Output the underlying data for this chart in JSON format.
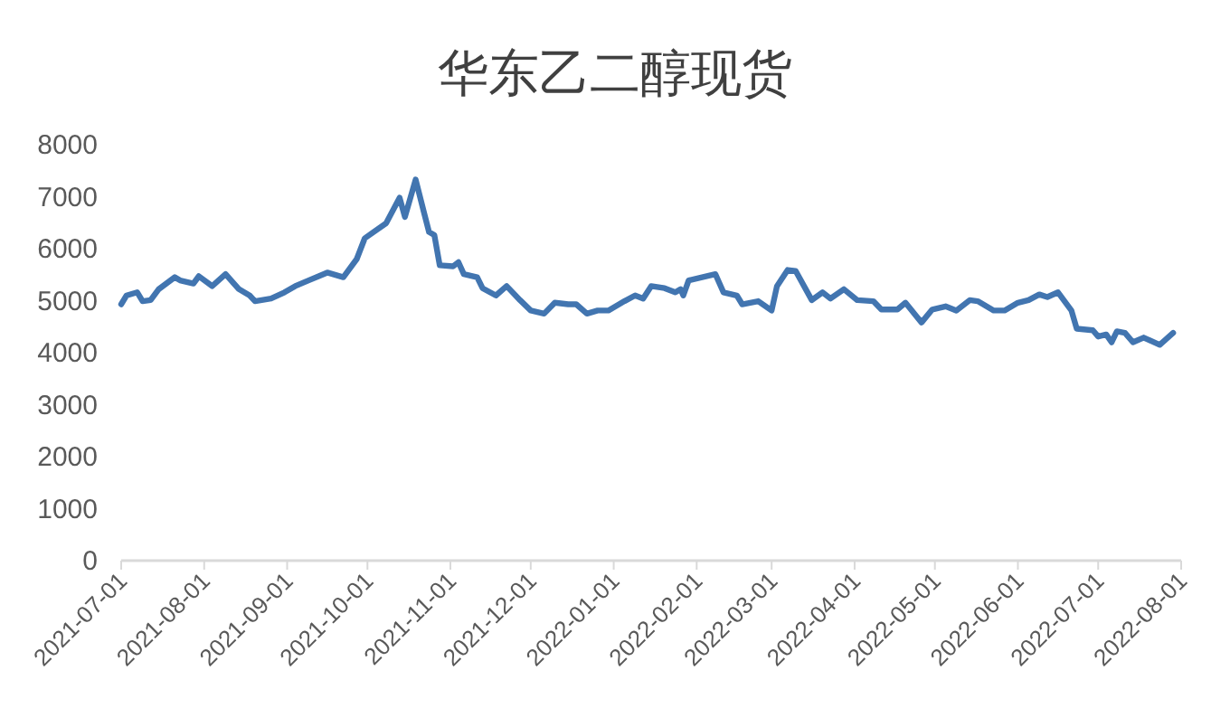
{
  "chart_data": {
    "type": "line",
    "title": "华东乙二醇现货",
    "x": [
      "2021-07-01",
      "2021-07-03",
      "2021-07-07",
      "2021-07-09",
      "2021-07-12",
      "2021-07-15",
      "2021-07-21",
      "2021-07-23",
      "2021-07-28",
      "2021-07-30",
      "2021-08-04",
      "2021-08-09",
      "2021-08-14",
      "2021-08-18",
      "2021-08-20",
      "2021-08-26",
      "2021-08-31",
      "2021-09-04",
      "2021-09-09",
      "2021-09-16",
      "2021-09-22",
      "2021-09-27",
      "2021-09-30",
      "2021-10-08",
      "2021-10-13",
      "2021-10-15",
      "2021-10-19",
      "2021-10-22",
      "2021-10-24",
      "2021-10-26",
      "2021-10-28",
      "2021-11-02",
      "2021-11-04",
      "2021-11-06",
      "2021-11-11",
      "2021-11-13",
      "2021-11-18",
      "2021-11-22",
      "2021-11-27",
      "2021-12-01",
      "2021-12-06",
      "2021-12-10",
      "2021-12-15",
      "2021-12-18",
      "2021-12-22",
      "2021-12-26",
      "2021-12-30",
      "2022-01-05",
      "2022-01-09",
      "2022-01-12",
      "2022-01-15",
      "2022-01-20",
      "2022-01-24",
      "2022-01-26",
      "2022-01-27",
      "2022-01-29",
      "2022-02-08",
      "2022-02-11",
      "2022-02-16",
      "2022-02-18",
      "2022-02-24",
      "2022-03-01",
      "2022-03-03",
      "2022-03-07",
      "2022-03-10",
      "2022-03-16",
      "2022-03-20",
      "2022-03-23",
      "2022-03-28",
      "2022-04-02",
      "2022-04-08",
      "2022-04-11",
      "2022-04-17",
      "2022-04-20",
      "2022-04-26",
      "2022-04-30",
      "2022-05-05",
      "2022-05-09",
      "2022-05-14",
      "2022-05-17",
      "2022-05-23",
      "2022-05-27",
      "2022-06-01",
      "2022-06-05",
      "2022-06-09",
      "2022-06-12",
      "2022-06-16",
      "2022-06-21",
      "2022-06-23",
      "2022-06-29",
      "2022-07-01",
      "2022-07-04",
      "2022-07-06",
      "2022-07-08",
      "2022-07-11",
      "2022-07-14",
      "2022-07-18",
      "2022-07-24",
      "2022-07-29"
    ],
    "series": [
      {
        "color": "#4275b0",
        "values": [
          4930,
          5100,
          5160,
          4990,
          5010,
          5220,
          5450,
          5390,
          5330,
          5470,
          5280,
          5510,
          5220,
          5100,
          4990,
          5040,
          5160,
          5280,
          5390,
          5540,
          5450,
          5800,
          6200,
          6490,
          6980,
          6610,
          7330,
          6720,
          6320,
          6260,
          5680,
          5660,
          5740,
          5510,
          5450,
          5240,
          5100,
          5280,
          5010,
          4810,
          4750,
          4960,
          4930,
          4930,
          4750,
          4810,
          4810,
          4990,
          5100,
          5040,
          5280,
          5240,
          5160,
          5220,
          5100,
          5390,
          5510,
          5160,
          5100,
          4930,
          4990,
          4810,
          5280,
          5590,
          5570,
          5010,
          5160,
          5040,
          5220,
          5010,
          4990,
          4830,
          4830,
          4960,
          4580,
          4830,
          4890,
          4810,
          5010,
          4990,
          4810,
          4810,
          4960,
          5010,
          5120,
          5070,
          5160,
          4810,
          4460,
          4430,
          4310,
          4350,
          4200,
          4410,
          4380,
          4200,
          4290,
          4150,
          4380
        ]
      }
    ],
    "xlim": [
      "2021-07-01",
      "2022-08-01"
    ],
    "xticks": [
      {
        "value": "2021-07-01",
        "label": "2021-07-01"
      },
      {
        "value": "2021-08-01",
        "label": "2021-08-01"
      },
      {
        "value": "2021-09-01",
        "label": "2021-09-01"
      },
      {
        "value": "2021-10-01",
        "label": "2021-10-01"
      },
      {
        "value": "2021-11-01",
        "label": "2021-11-01"
      },
      {
        "value": "2021-12-01",
        "label": "2021-12-01"
      },
      {
        "value": "2022-01-01",
        "label": "2022-01-01"
      },
      {
        "value": "2022-02-01",
        "label": "2022-02-01"
      },
      {
        "value": "2022-03-01",
        "label": "2022-03-01"
      },
      {
        "value": "2022-04-01",
        "label": "2022-04-01"
      },
      {
        "value": "2022-05-01",
        "label": "2022-05-01"
      },
      {
        "value": "2022-06-01",
        "label": "2022-06-01"
      },
      {
        "value": "2022-07-01",
        "label": "2022-07-01"
      },
      {
        "value": "2022-08-01",
        "label": "2022-08-01"
      }
    ],
    "ylim": [
      0,
      8000
    ],
    "yticks": [
      0,
      1000,
      2000,
      3000,
      4000,
      5000,
      6000,
      7000,
      8000
    ],
    "grid": false,
    "marker": "none",
    "line_style": "solid"
  }
}
